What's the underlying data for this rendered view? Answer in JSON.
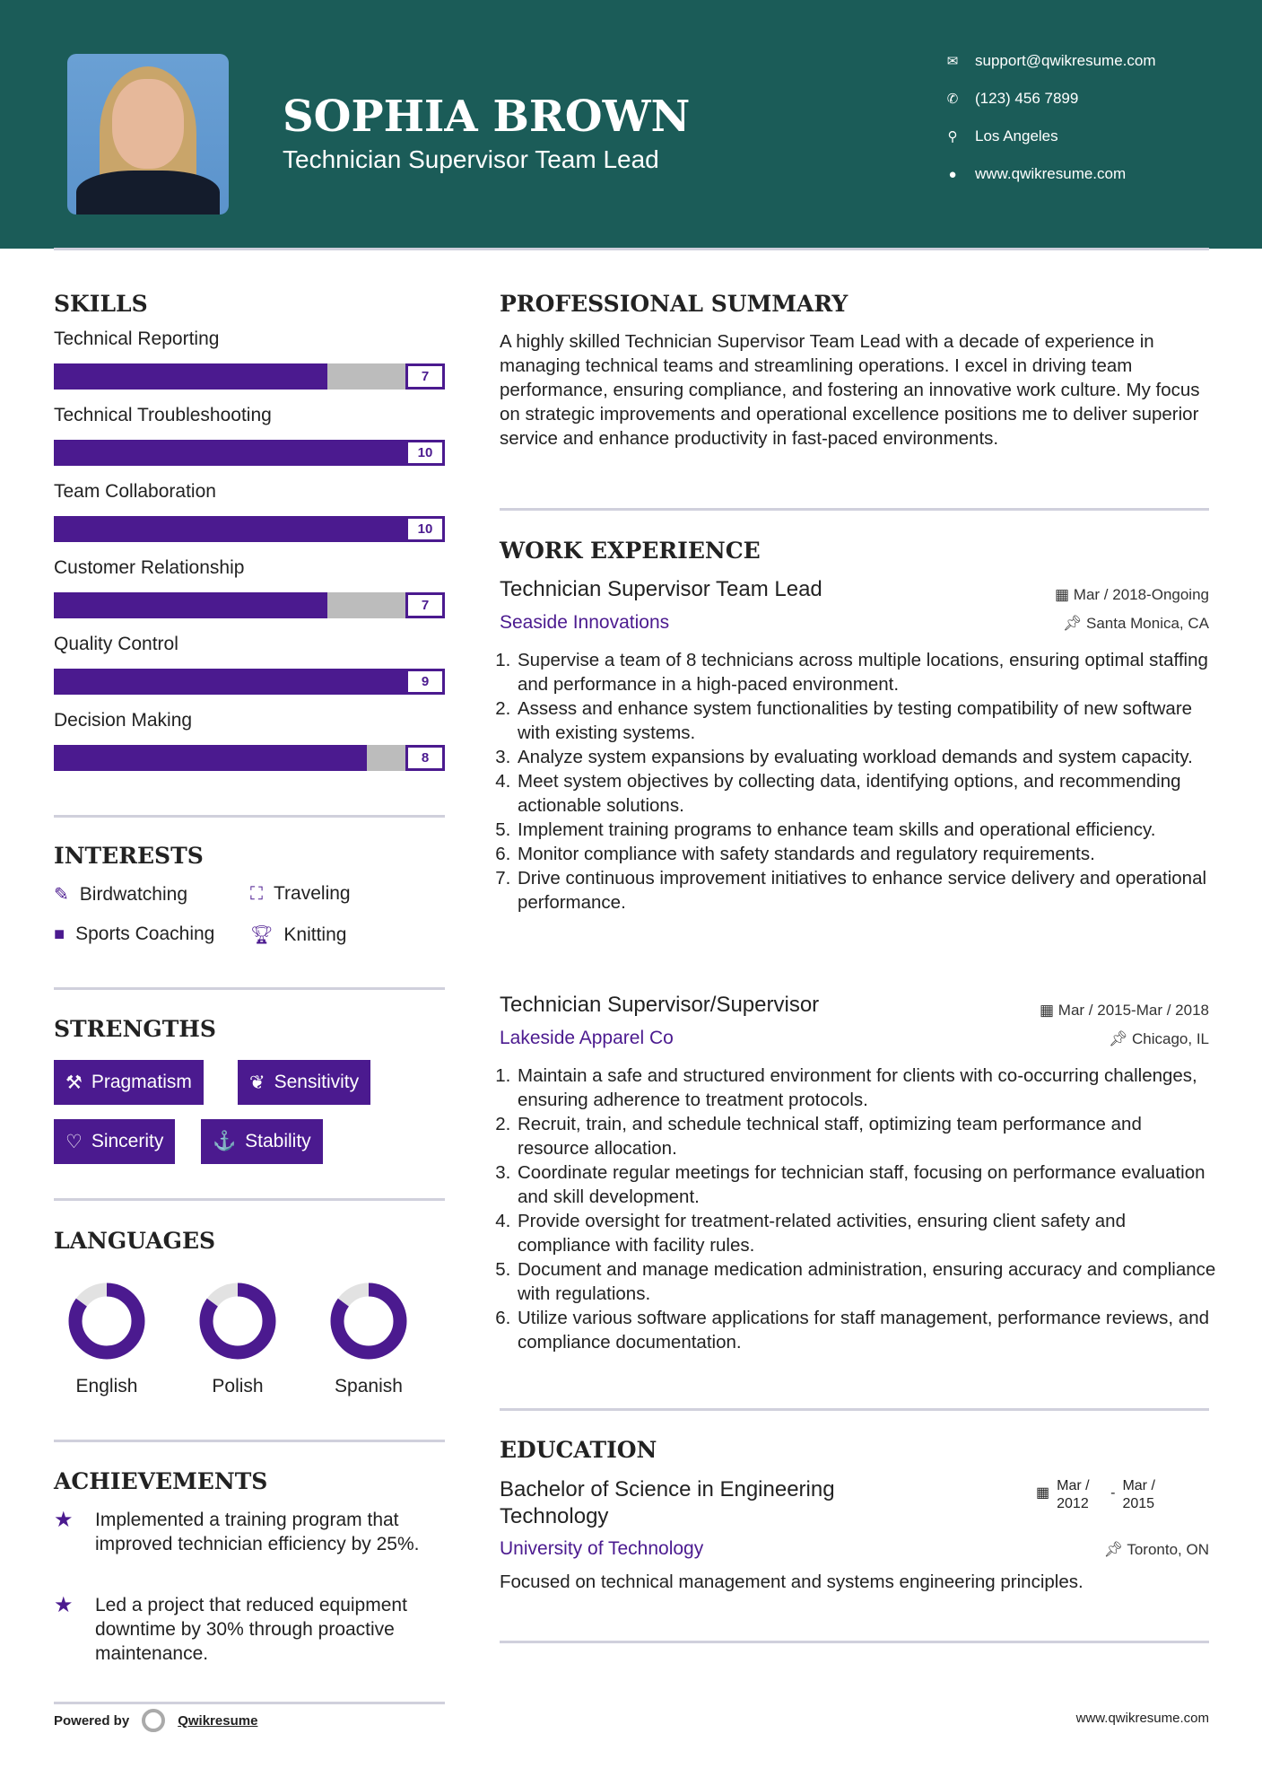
{
  "header": {
    "name": "SOPHIA BROWN",
    "title": "Technician Supervisor Team Lead",
    "contacts": [
      {
        "icon": "envelope-icon",
        "text": "support@qwikresume.com"
      },
      {
        "icon": "phone-icon",
        "text": "(123) 456 7899"
      },
      {
        "icon": "map-pin-icon",
        "text": "Los Angeles"
      },
      {
        "icon": "globe-icon",
        "text": "www.qwikresume.com"
      }
    ]
  },
  "colors": {
    "header": "#1b5c58",
    "accent": "#4b1a8f"
  },
  "skills": {
    "heading": "SKILLS",
    "max": 10,
    "items": [
      {
        "label": "Technical Reporting",
        "value": "7",
        "level": 7
      },
      {
        "label": "Technical Troubleshooting",
        "value": "10",
        "level": 10
      },
      {
        "label": "Team Collaboration",
        "value": "10",
        "level": 10
      },
      {
        "label": "Customer Relationship",
        "value": "7",
        "level": 7
      },
      {
        "label": "Quality Control",
        "value": "9",
        "level": 9
      },
      {
        "label": "Decision Making",
        "value": "8",
        "level": 8
      }
    ]
  },
  "interests": {
    "heading": "INTERESTS",
    "items": [
      {
        "icon": "pencil-square-icon",
        "label": "Birdwatching"
      },
      {
        "icon": "binoculars-icon",
        "label": "Traveling"
      },
      {
        "icon": "briefcase-icon",
        "label": "Sports Coaching"
      },
      {
        "icon": "trophy-icon",
        "label": "Knitting"
      }
    ]
  },
  "strengths": {
    "heading": "STRENGTHS",
    "items": [
      {
        "icon": "gavel-icon",
        "label": "Pragmatism"
      },
      {
        "icon": "leaf-icon",
        "label": "Sensitivity"
      },
      {
        "icon": "heart-icon",
        "label": "Sincerity"
      },
      {
        "icon": "anchor-icon",
        "label": "Stability"
      }
    ]
  },
  "languages": {
    "heading": "LANGUAGES",
    "items": [
      {
        "label": "English",
        "level": 85
      },
      {
        "label": "Polish",
        "level": 85
      },
      {
        "label": "Spanish",
        "level": 85
      }
    ]
  },
  "achievements": {
    "heading": "ACHIEVEMENTS",
    "items": [
      "Implemented a training program that improved technician efficiency by 25%.",
      "Led a project that reduced equipment downtime by 30% through proactive maintenance."
    ]
  },
  "summary": {
    "heading": "PROFESSIONAL SUMMARY",
    "text": "A highly skilled Technician Supervisor Team Lead with a decade of experience in managing technical teams and streamlining operations. I excel in driving team performance, ensuring compliance, and fostering an innovative work culture. My focus on strategic improvements and operational excellence positions me to deliver superior service and enhance productivity in fast-paced environments."
  },
  "experience": {
    "heading": "WORK EXPERIENCE",
    "jobs": [
      {
        "title": "Technician Supervisor Team Lead",
        "date": "Mar / 2018-Ongoing",
        "company": "Seaside Innovations",
        "location": "Santa Monica, CA",
        "bullets": [
          "Supervise a team of 8 technicians across multiple locations, ensuring optimal staffing and performance in a high-paced environment.",
          "Assess and enhance system functionalities by testing compatibility of new software with existing systems.",
          "Analyze system expansions by evaluating workload demands and system capacity.",
          "Meet system objectives by collecting data, identifying options, and recommending actionable solutions.",
          "Implement training programs to enhance team skills and operational efficiency.",
          "Monitor compliance with safety standards and regulatory requirements.",
          "Drive continuous improvement initiatives to enhance service delivery and operational performance."
        ]
      },
      {
        "title": "Technician Supervisor/Supervisor",
        "date": "Mar / 2015-Mar / 2018",
        "company": "Lakeside Apparel Co",
        "location": "Chicago, IL",
        "bullets": [
          "Maintain a safe and structured environment for clients with co-occurring challenges, ensuring adherence to treatment protocols.",
          "Recruit, train, and schedule technical staff, optimizing team performance and resource allocation.",
          "Coordinate regular meetings for technician staff, focusing on performance evaluation and skill development.",
          "Provide oversight for treatment-related activities, ensuring client safety and compliance with facility rules.",
          "Document and manage medication administration, ensuring accuracy and compliance with regulations.",
          "Utilize various software applications for staff management, performance reviews, and compliance documentation."
        ]
      }
    ]
  },
  "education": {
    "heading": "EDUCATION",
    "degree": "Bachelor of Science in Engineering Technology",
    "date_start": "Mar / 2012",
    "date_sep": "-",
    "date_end": "Mar / 2015",
    "school": "University of Technology",
    "location": "Toronto, ON",
    "description": "Focused on technical management and systems engineering principles."
  },
  "footer": {
    "powered_by": "Powered by",
    "brand": "Qwikresume",
    "url": "www.qwikresume.com"
  }
}
